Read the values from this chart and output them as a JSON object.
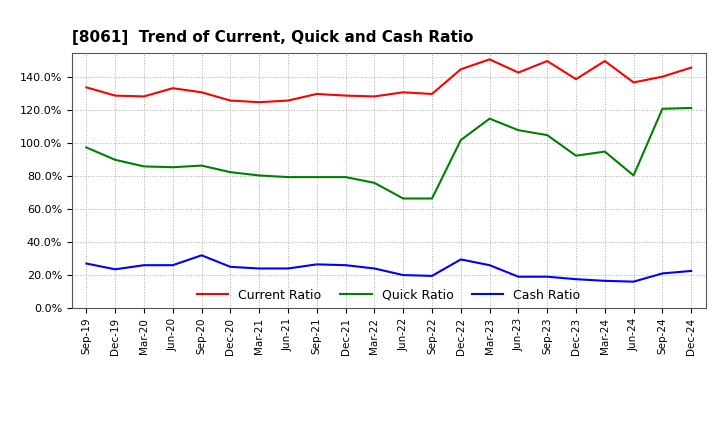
{
  "title": "[8061]  Trend of Current, Quick and Cash Ratio",
  "x_labels": [
    "Sep-19",
    "Dec-19",
    "Mar-20",
    "Jun-20",
    "Sep-20",
    "Dec-20",
    "Mar-21",
    "Jun-21",
    "Sep-21",
    "Dec-21",
    "Mar-22",
    "Jun-22",
    "Sep-22",
    "Dec-22",
    "Mar-23",
    "Jun-23",
    "Sep-23",
    "Dec-23",
    "Mar-24",
    "Jun-24",
    "Sep-24",
    "Dec-24"
  ],
  "current_ratio": [
    134.0,
    129.0,
    128.5,
    133.5,
    131.0,
    126.0,
    125.0,
    126.0,
    130.0,
    129.0,
    128.5,
    131.0,
    130.0,
    145.0,
    151.0,
    143.0,
    150.0,
    139.0,
    150.0,
    137.0,
    140.5,
    146.0
  ],
  "quick_ratio": [
    97.5,
    90.0,
    86.0,
    85.5,
    86.5,
    82.5,
    80.5,
    79.5,
    79.5,
    79.5,
    76.0,
    66.5,
    66.5,
    102.0,
    115.0,
    108.0,
    105.0,
    92.5,
    95.0,
    80.5,
    121.0,
    121.5
  ],
  "cash_ratio": [
    27.0,
    23.5,
    26.0,
    26.0,
    32.0,
    25.0,
    24.0,
    24.0,
    26.5,
    26.0,
    24.0,
    20.0,
    19.5,
    29.5,
    26.0,
    19.0,
    19.0,
    17.5,
    16.5,
    16.0,
    21.0,
    22.5
  ],
  "current_color": "#FF0000",
  "quick_color": "#008000",
  "cash_color": "#0000FF",
  "ylim": [
    0,
    155
  ],
  "yticks": [
    0,
    20,
    40,
    60,
    80,
    100,
    120,
    140
  ],
  "ytick_labels": [
    "0.0%",
    "20.0%",
    "40.0%",
    "60.0%",
    "80.0%",
    "100.0%",
    "120.0%",
    "140.0%"
  ],
  "legend_labels": [
    "Current Ratio",
    "Quick Ratio",
    "Cash Ratio"
  ],
  "background_color": "#FFFFFF",
  "plot_bg_color": "#FFFFFF",
  "grid_color": "#AAAAAA",
  "line_width": 1.5
}
